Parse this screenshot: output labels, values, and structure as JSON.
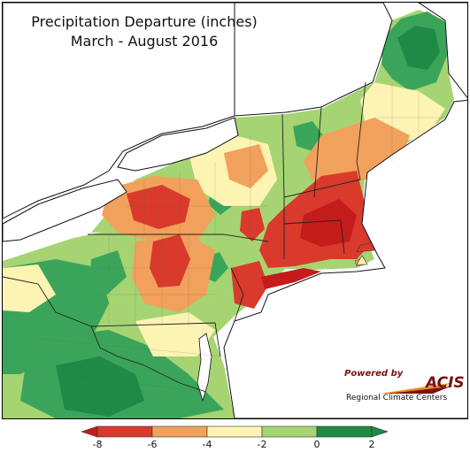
{
  "title": {
    "line1": "Precipitation Departure (inches)",
    "line2": "March - August 2016"
  },
  "logo": {
    "powered_by": "Powered by",
    "name": "ACIS",
    "org": "Regional Climate Centers"
  },
  "legend": {
    "ticks": [
      "-8",
      "-6",
      "-4",
      "-2",
      "0",
      "2"
    ],
    "colors": {
      "below_min": "#c41b1b",
      "bin_1": "#d93a2b",
      "bin_2": "#f1a15c",
      "bin_3": "#fdf3b3",
      "bin_4": "#a6d472",
      "bin_5": "#3aa55a",
      "above_max": "#1e8a45"
    }
  }
}
